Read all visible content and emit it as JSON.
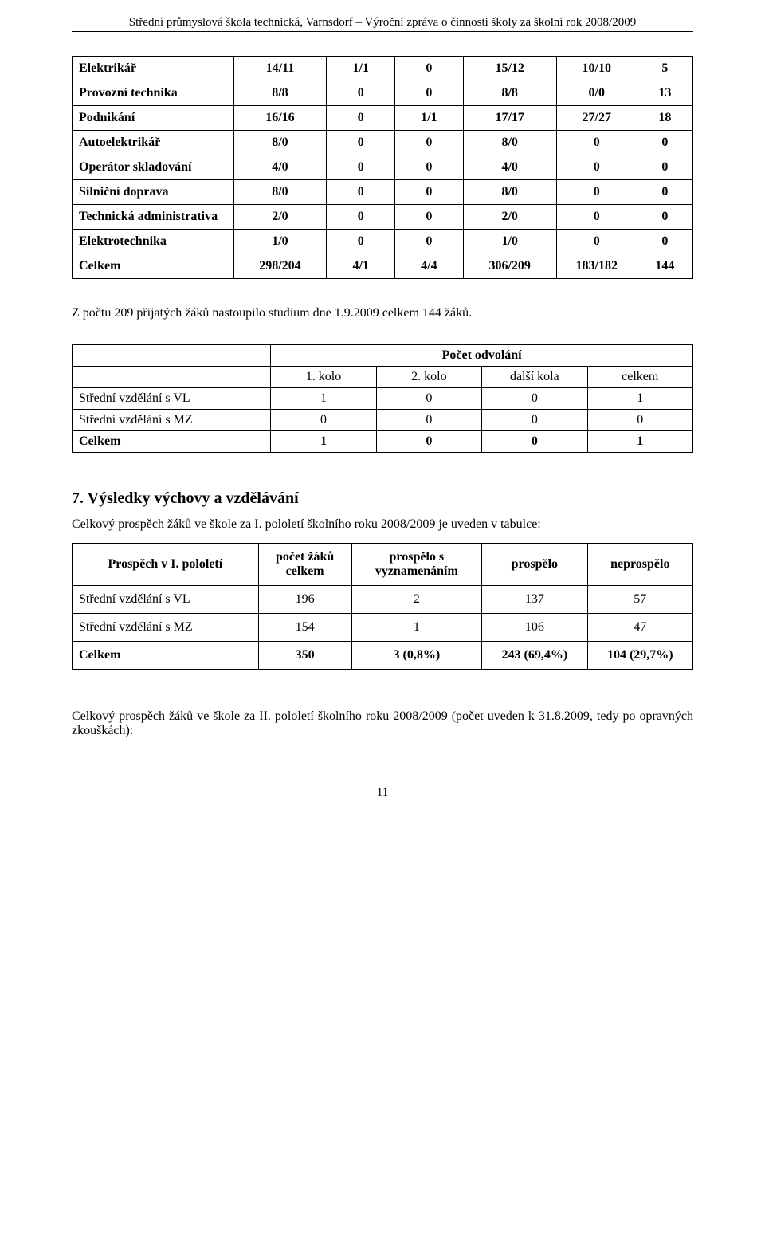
{
  "header": {
    "text": "Střední průmyslová škola technická, Varnsdorf – Výroční zpráva o činnosti školy za školní rok 2008/2009"
  },
  "table1": {
    "rows": [
      {
        "label": "Elektrikář",
        "bold": true,
        "v": [
          "14/11",
          "1/1",
          "0",
          "15/12",
          "10/10",
          "5"
        ]
      },
      {
        "label": "Provozní technika",
        "bold": true,
        "v": [
          "8/8",
          "0",
          "0",
          "8/8",
          "0/0",
          "13"
        ]
      },
      {
        "label": "Podnikání",
        "bold": true,
        "v": [
          "16/16",
          "0",
          "1/1",
          "17/17",
          "27/27",
          "18"
        ]
      },
      {
        "label": "Autoelektrikář",
        "bold": true,
        "v": [
          "8/0",
          "0",
          "0",
          "8/0",
          "0",
          "0"
        ]
      },
      {
        "label": "Operátor skladování",
        "bold": true,
        "v": [
          "4/0",
          "0",
          "0",
          "4/0",
          "0",
          "0"
        ]
      },
      {
        "label": "Silniční doprava",
        "bold": true,
        "v": [
          "8/0",
          "0",
          "0",
          "8/0",
          "0",
          "0"
        ]
      },
      {
        "label": "Technická administrativa",
        "bold": true,
        "v": [
          "2/0",
          "0",
          "0",
          "2/0",
          "0",
          "0"
        ]
      },
      {
        "label": "Elektrotechnika",
        "bold": true,
        "v": [
          "1/0",
          "0",
          "0",
          "1/0",
          "0",
          "0"
        ]
      },
      {
        "label": "Celkem",
        "bold": true,
        "v": [
          "298/204",
          "4/1",
          "4/4",
          "306/209",
          "183/182",
          "144"
        ]
      }
    ]
  },
  "after_t1": "Z počtu 209 přijatých žáků nastoupilo studium dne 1.9.2009 celkem 144 žáků.",
  "odvolani": {
    "title": "Počet odvolání",
    "cols": [
      "1. kolo",
      "2. kolo",
      "další kola",
      "celkem"
    ],
    "rows": [
      {
        "label": "Střední vzdělání s VL",
        "v": [
          "1",
          "0",
          "0",
          "1"
        ]
      },
      {
        "label": "Střední vzdělání s MZ",
        "v": [
          "0",
          "0",
          "0",
          "0"
        ]
      },
      {
        "label": "Celkem",
        "bold": true,
        "v": [
          "1",
          "0",
          "0",
          "1"
        ]
      }
    ]
  },
  "section7": {
    "title": "7. Výsledky výchovy a vzdělávání",
    "intro": "Celkový prospěch žáků ve škole za I. pololetí školního roku 2008/2009 je uveden v tabulce:"
  },
  "prospech": {
    "head": [
      "Prospěch v I. pololetí",
      "počet žáků celkem",
      "prospělo s vyznamenáním",
      "prospělo",
      "neprospělo"
    ],
    "rows": [
      {
        "label": "Střední vzdělání s VL",
        "v": [
          "196",
          "2",
          "137",
          "57"
        ]
      },
      {
        "label": "Střední vzdělání s MZ",
        "v": [
          "154",
          "1",
          "106",
          "47"
        ]
      },
      {
        "label": "Celkem",
        "bold": true,
        "v": [
          "350",
          "3  (0,8%)",
          "243 (69,4%)",
          "104 (29,7%)"
        ]
      }
    ]
  },
  "closing": "Celkový prospěch žáků ve škole za II. pololetí školního roku 2008/2009 (počet uveden k 31.8.2009, tedy po opravných zkouškách):",
  "pagenum": "11"
}
